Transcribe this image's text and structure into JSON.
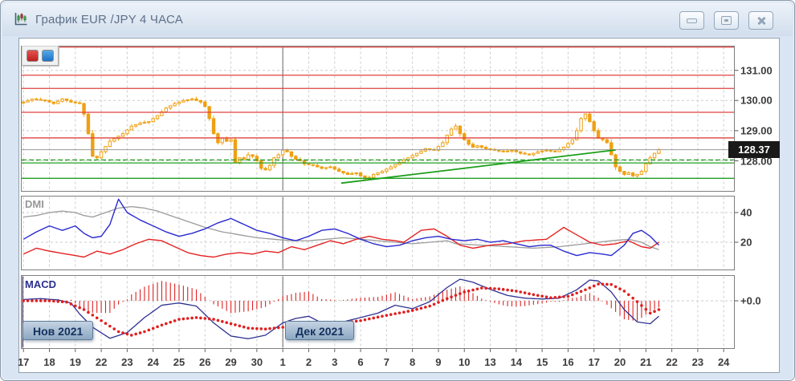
{
  "window": {
    "title": "График EUR /JPY  4 ЧАСА",
    "controls": {
      "minimize": "свернуть",
      "maximize": "развернуть",
      "close": "закрыть"
    }
  },
  "legend": {
    "buttons": [
      {
        "name": "red-series",
        "color": "#c92424"
      },
      {
        "name": "blue-series",
        "color": "#2277cc"
      }
    ]
  },
  "colors": {
    "candle": "#efa013",
    "level_red": "#e04040",
    "level_green": "#22a022",
    "trendline": "#1a9e1a",
    "current_line": "#9a9a9a",
    "dmi_plus": "#2a2ad0",
    "dmi_minus": "#e52222",
    "dmi_adx": "#9b9b9b",
    "macd_line": "#2e3192",
    "macd_signal": "#e01f1f",
    "macd_hist": "#dd2222",
    "grid": "#cdcdcd",
    "month_line": "#6a6a6a"
  },
  "chart_data": {
    "type": "candlestick",
    "symbol": "EUR/JPY",
    "timeframe": "4 часа",
    "candles_per_day": 6,
    "n_candles": 148,
    "x_axis": {
      "day_labels": [
        "17",
        "18",
        "19",
        "22",
        "23",
        "24",
        "25",
        "26",
        "29",
        "30",
        "1",
        "2",
        "3",
        "6",
        "7",
        "8",
        "9",
        "10",
        "13",
        "14",
        "15",
        "16",
        "17",
        "20",
        "21",
        "22",
        "23",
        "24"
      ],
      "month_markers": [
        {
          "label": "Нов 2021",
          "day_index": 0
        },
        {
          "label": "Дек 2021",
          "day_index": 10
        }
      ]
    },
    "price_axis": {
      "ticks": [
        "131.00",
        "130.00",
        "129.00",
        "128.00"
      ],
      "tick_values": [
        131,
        130,
        129,
        128
      ],
      "current_price": "128.37",
      "current_price_value": 128.37
    },
    "close_keyframes": [
      [
        0,
        129.95
      ],
      [
        2,
        130.05
      ],
      [
        5,
        130.0
      ],
      [
        7,
        129.9
      ],
      [
        9,
        130.05
      ],
      [
        11,
        129.95
      ],
      [
        13,
        129.9
      ],
      [
        14,
        129.55
      ],
      [
        15,
        128.9
      ],
      [
        16,
        128.15
      ],
      [
        17,
        128.1
      ],
      [
        18,
        128.3
      ],
      [
        20,
        128.65
      ],
      [
        23,
        128.9
      ],
      [
        25,
        129.15
      ],
      [
        27,
        129.25
      ],
      [
        29,
        129.3
      ],
      [
        31,
        129.5
      ],
      [
        33,
        129.75
      ],
      [
        35,
        129.9
      ],
      [
        37,
        130.0
      ],
      [
        39,
        130.05
      ],
      [
        41,
        129.95
      ],
      [
        42,
        129.8
      ],
      [
        43,
        129.4
      ],
      [
        44,
        128.9
      ],
      [
        45,
        128.6
      ],
      [
        46,
        128.75
      ],
      [
        47,
        128.65
      ],
      [
        48,
        128.7
      ],
      [
        49,
        127.95
      ],
      [
        50,
        128.1
      ],
      [
        51,
        128.05
      ],
      [
        52,
        128.2
      ],
      [
        53,
        128.15
      ],
      [
        54,
        128.0
      ],
      [
        55,
        127.75
      ],
      [
        56,
        127.7
      ],
      [
        57,
        127.85
      ],
      [
        58,
        128.1
      ],
      [
        59,
        128.2
      ],
      [
        60,
        128.35
      ],
      [
        61,
        128.3
      ],
      [
        62,
        128.15
      ],
      [
        63,
        128.05
      ],
      [
        64,
        128.0
      ],
      [
        65,
        127.9
      ],
      [
        67,
        127.85
      ],
      [
        69,
        127.75
      ],
      [
        71,
        127.8
      ],
      [
        73,
        127.65
      ],
      [
        75,
        127.55
      ],
      [
        77,
        127.6
      ],
      [
        78,
        127.5
      ],
      [
        79,
        127.4
      ],
      [
        80,
        127.45
      ],
      [
        81,
        127.55
      ],
      [
        82,
        127.6
      ],
      [
        83,
        127.65
      ],
      [
        85,
        127.8
      ],
      [
        87,
        127.95
      ],
      [
        89,
        128.1
      ],
      [
        91,
        128.25
      ],
      [
        93,
        128.4
      ],
      [
        95,
        128.35
      ],
      [
        97,
        128.6
      ],
      [
        98,
        128.85
      ],
      [
        99,
        129.05
      ],
      [
        100,
        129.15
      ],
      [
        101,
        128.9
      ],
      [
        102,
        128.7
      ],
      [
        103,
        128.55
      ],
      [
        104,
        128.45
      ],
      [
        105,
        128.5
      ],
      [
        106,
        128.45
      ],
      [
        107,
        128.4
      ],
      [
        109,
        128.35
      ],
      [
        111,
        128.3
      ],
      [
        113,
        128.35
      ],
      [
        115,
        128.25
      ],
      [
        117,
        128.2
      ],
      [
        119,
        128.3
      ],
      [
        121,
        128.35
      ],
      [
        123,
        128.3
      ],
      [
        125,
        128.45
      ],
      [
        127,
        128.7
      ],
      [
        128,
        129.0
      ],
      [
        129,
        129.4
      ],
      [
        130,
        129.55
      ],
      [
        131,
        129.3
      ],
      [
        132,
        129.0
      ],
      [
        133,
        128.75
      ],
      [
        134,
        128.7
      ],
      [
        135,
        128.6
      ],
      [
        136,
        128.2
      ],
      [
        137,
        127.8
      ],
      [
        138,
        127.65
      ],
      [
        139,
        127.55
      ],
      [
        140,
        127.6
      ],
      [
        141,
        127.5
      ],
      [
        142,
        127.55
      ],
      [
        143,
        127.65
      ],
      [
        144,
        127.9
      ],
      [
        145,
        128.1
      ],
      [
        146,
        128.25
      ],
      [
        147,
        128.37
      ]
    ],
    "wick_up_pattern": [
      0.06,
      0.12,
      0.03,
      0.1,
      0.16,
      0.05,
      0.09,
      0.02,
      0.13,
      0.07,
      0.04,
      0.11
    ],
    "wick_down_pattern": [
      0.1,
      0.03,
      0.12,
      0.05,
      0.02,
      0.14,
      0.06,
      0.1,
      0.04,
      0.08,
      0.13,
      0.05
    ],
    "levels": {
      "resistance_red": [
        131.77,
        130.84,
        130.4,
        129.61,
        128.76
      ],
      "support_green_dashed": [
        128.03
      ],
      "support_green_solid": [
        127.93,
        127.42
      ],
      "current_gray": 128.37
    },
    "trendline": {
      "x1_idx": 73.5,
      "y1_price": 127.26,
      "x2_idx": 137,
      "y2_price": 128.36
    },
    "dmi": {
      "label": "DMI",
      "tick_labels": [
        "40",
        "20"
      ],
      "tick_values": [
        40,
        20
      ],
      "plus_di": [
        [
          0,
          22
        ],
        [
          3,
          27
        ],
        [
          6,
          31
        ],
        [
          9,
          28
        ],
        [
          12,
          31
        ],
        [
          14,
          26
        ],
        [
          16,
          23
        ],
        [
          18,
          24
        ],
        [
          20,
          32
        ],
        [
          22,
          49
        ],
        [
          24,
          40
        ],
        [
          27,
          35
        ],
        [
          30,
          31
        ],
        [
          33,
          27
        ],
        [
          36,
          24
        ],
        [
          39,
          26
        ],
        [
          42,
          29
        ],
        [
          45,
          33
        ],
        [
          48,
          36
        ],
        [
          51,
          32
        ],
        [
          54,
          28
        ],
        [
          57,
          26
        ],
        [
          60,
          23
        ],
        [
          63,
          21
        ],
        [
          66,
          24
        ],
        [
          69,
          28
        ],
        [
          72,
          29
        ],
        [
          75,
          26
        ],
        [
          78,
          22
        ],
        [
          81,
          19
        ],
        [
          84,
          17
        ],
        [
          87,
          18
        ],
        [
          90,
          21
        ],
        [
          93,
          23
        ],
        [
          96,
          24
        ],
        [
          99,
          22
        ],
        [
          102,
          21
        ],
        [
          105,
          22
        ],
        [
          108,
          20
        ],
        [
          111,
          21
        ],
        [
          114,
          19
        ],
        [
          117,
          17
        ],
        [
          120,
          18
        ],
        [
          122,
          18
        ],
        [
          125,
          14
        ],
        [
          128,
          11
        ],
        [
          131,
          13
        ],
        [
          134,
          12
        ],
        [
          136,
          11
        ],
        [
          139,
          18
        ],
        [
          141,
          26
        ],
        [
          143,
          28
        ],
        [
          145,
          24
        ],
        [
          147,
          18
        ]
      ],
      "minus_di": [
        [
          0,
          12
        ],
        [
          3,
          16
        ],
        [
          6,
          14
        ],
        [
          10,
          12
        ],
        [
          14,
          10
        ],
        [
          17,
          14
        ],
        [
          20,
          12
        ],
        [
          23,
          15
        ],
        [
          26,
          19
        ],
        [
          29,
          22
        ],
        [
          32,
          21
        ],
        [
          35,
          17
        ],
        [
          38,
          13
        ],
        [
          41,
          11
        ],
        [
          44,
          10
        ],
        [
          47,
          12
        ],
        [
          50,
          13
        ],
        [
          53,
          12
        ],
        [
          56,
          14
        ],
        [
          59,
          13
        ],
        [
          62,
          17
        ],
        [
          65,
          15
        ],
        [
          68,
          18
        ],
        [
          71,
          21
        ],
        [
          74,
          19
        ],
        [
          77,
          22
        ],
        [
          80,
          24
        ],
        [
          83,
          22
        ],
        [
          86,
          21
        ],
        [
          88,
          20
        ],
        [
          92,
          28
        ],
        [
          95,
          29
        ],
        [
          98,
          24
        ],
        [
          101,
          18
        ],
        [
          104,
          16
        ],
        [
          108,
          18
        ],
        [
          112,
          19
        ],
        [
          116,
          21
        ],
        [
          121,
          22
        ],
        [
          125,
          30
        ],
        [
          128,
          25
        ],
        [
          131,
          20
        ],
        [
          134,
          18
        ],
        [
          137,
          19
        ],
        [
          140,
          21
        ],
        [
          143,
          17
        ],
        [
          145,
          16
        ],
        [
          147,
          20
        ]
      ],
      "adx": [
        [
          0,
          37
        ],
        [
          3,
          38
        ],
        [
          6,
          40
        ],
        [
          9,
          41
        ],
        [
          12,
          40
        ],
        [
          14,
          38
        ],
        [
          16,
          37
        ],
        [
          19,
          40
        ],
        [
          22,
          43
        ],
        [
          25,
          44
        ],
        [
          28,
          43
        ],
        [
          31,
          41
        ],
        [
          34,
          38
        ],
        [
          38,
          34
        ],
        [
          42,
          30
        ],
        [
          46,
          27
        ],
        [
          50,
          25
        ],
        [
          54,
          23
        ],
        [
          58,
          22
        ],
        [
          62,
          21
        ],
        [
          66,
          21
        ],
        [
          70,
          22
        ],
        [
          74,
          23
        ],
        [
          78,
          22
        ],
        [
          82,
          21
        ],
        [
          86,
          20
        ],
        [
          90,
          19
        ],
        [
          94,
          20
        ],
        [
          98,
          21
        ],
        [
          100,
          19
        ],
        [
          106,
          18
        ],
        [
          112,
          17
        ],
        [
          118,
          16
        ],
        [
          124,
          17
        ],
        [
          130,
          19
        ],
        [
          136,
          21
        ],
        [
          140,
          22
        ],
        [
          143,
          20
        ],
        [
          145,
          17
        ],
        [
          147,
          15
        ]
      ]
    },
    "macd": {
      "label": "MACD",
      "zero_label": "+0.0",
      "macd_keyframes": [
        [
          0,
          0.03
        ],
        [
          4,
          0.05
        ],
        [
          8,
          0.02
        ],
        [
          11,
          -0.05
        ],
        [
          13,
          -0.3
        ],
        [
          16,
          -0.6
        ],
        [
          20,
          -0.85
        ],
        [
          24,
          -0.72
        ],
        [
          28,
          -0.38
        ],
        [
          32,
          -0.1
        ],
        [
          36,
          -0.05
        ],
        [
          40,
          -0.12
        ],
        [
          44,
          -0.5
        ],
        [
          48,
          -0.8
        ],
        [
          52,
          -0.86
        ],
        [
          56,
          -0.78
        ],
        [
          60,
          -0.5
        ],
        [
          63,
          -0.4
        ],
        [
          66,
          -0.35
        ],
        [
          69,
          -0.5
        ],
        [
          73,
          -0.5
        ],
        [
          78,
          -0.38
        ],
        [
          82,
          -0.28
        ],
        [
          86,
          -0.1
        ],
        [
          90,
          -0.18
        ],
        [
          94,
          -0.02
        ],
        [
          98,
          0.3
        ],
        [
          101,
          0.49
        ],
        [
          104,
          0.42
        ],
        [
          108,
          0.26
        ],
        [
          112,
          0.12
        ],
        [
          116,
          0.06
        ],
        [
          120,
          0.04
        ],
        [
          124,
          0.06
        ],
        [
          128,
          0.25
        ],
        [
          131,
          0.47
        ],
        [
          133,
          0.45
        ],
        [
          136,
          0.2
        ],
        [
          139,
          -0.2
        ],
        [
          142,
          -0.48
        ],
        [
          145,
          -0.52
        ],
        [
          147,
          -0.35
        ]
      ],
      "signal_keyframes": [
        [
          0,
          0.0
        ],
        [
          6,
          0.0
        ],
        [
          10,
          -0.03
        ],
        [
          14,
          -0.2
        ],
        [
          18,
          -0.45
        ],
        [
          22,
          -0.7
        ],
        [
          25,
          -0.78
        ],
        [
          28,
          -0.7
        ],
        [
          32,
          -0.55
        ],
        [
          36,
          -0.42
        ],
        [
          40,
          -0.38
        ],
        [
          44,
          -0.42
        ],
        [
          48,
          -0.52
        ],
        [
          52,
          -0.62
        ],
        [
          56,
          -0.64
        ],
        [
          60,
          -0.6
        ],
        [
          66,
          -0.56
        ],
        [
          72,
          -0.52
        ],
        [
          78,
          -0.45
        ],
        [
          84,
          -0.33
        ],
        [
          90,
          -0.22
        ],
        [
          94,
          -0.12
        ],
        [
          98,
          0.05
        ],
        [
          102,
          0.2
        ],
        [
          106,
          0.29
        ],
        [
          110,
          0.27
        ],
        [
          114,
          0.22
        ],
        [
          118,
          0.14
        ],
        [
          122,
          0.07
        ],
        [
          126,
          0.1
        ],
        [
          130,
          0.25
        ],
        [
          133,
          0.38
        ],
        [
          136,
          0.37
        ],
        [
          139,
          0.22
        ],
        [
          142,
          -0.02
        ],
        [
          145,
          -0.28
        ],
        [
          147,
          -0.2
        ]
      ]
    }
  }
}
